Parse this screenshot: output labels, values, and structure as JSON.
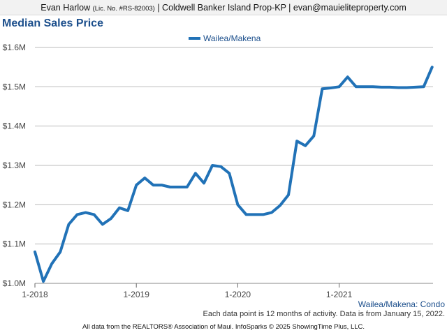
{
  "header": {
    "agent": "Evan Harlow",
    "license": "(Lic. No. #RS-82003)",
    "company": "| Coldwell Banker Island Prop-KP |",
    "email": "evan@mauieliteproperty.com"
  },
  "colors": {
    "series": "#2172b7",
    "title": "#1c4f8c",
    "grid": "#bbbbbb"
  },
  "chart_data": {
    "type": "line",
    "title": "Median Sales Price",
    "legend": {
      "placement": "top-center"
    },
    "grid": true,
    "ylim": [
      1000000,
      1600000
    ],
    "y_ticks": [
      {
        "value": 1000000,
        "label": "$1.0M"
      },
      {
        "value": 1100000,
        "label": "$1.1M"
      },
      {
        "value": 1200000,
        "label": "$1.2M"
      },
      {
        "value": 1300000,
        "label": "$1.3M"
      },
      {
        "value": 1400000,
        "label": "$1.4M"
      },
      {
        "value": 1500000,
        "label": "$1.5M"
      },
      {
        "value": 1600000,
        "label": "$1.6M"
      }
    ],
    "x_ticks": [
      "1-2018",
      "1-2019",
      "1-2020",
      "1-2021"
    ],
    "series": [
      {
        "name": "Wailea/Makena",
        "x": [
          "1-2018",
          "2-2018",
          "3-2018",
          "4-2018",
          "5-2018",
          "6-2018",
          "7-2018",
          "8-2018",
          "9-2018",
          "10-2018",
          "11-2018",
          "12-2018",
          "1-2019",
          "2-2019",
          "3-2019",
          "4-2019",
          "5-2019",
          "6-2019",
          "7-2019",
          "8-2019",
          "9-2019",
          "10-2019",
          "11-2019",
          "12-2019",
          "1-2020",
          "2-2020",
          "3-2020",
          "4-2020",
          "5-2020",
          "6-2020",
          "7-2020",
          "8-2020",
          "9-2020",
          "10-2020",
          "11-2020",
          "12-2020",
          "1-2021",
          "2-2021",
          "3-2021",
          "4-2021",
          "5-2021",
          "6-2021",
          "7-2021",
          "8-2021",
          "9-2021",
          "10-2021",
          "11-2021",
          "12-2021"
        ],
        "values": [
          1080000,
          1005000,
          1050000,
          1080000,
          1150000,
          1175000,
          1180000,
          1175000,
          1150000,
          1165000,
          1192000,
          1185000,
          1250000,
          1268000,
          1250000,
          1250000,
          1245000,
          1245000,
          1245000,
          1280000,
          1255000,
          1300000,
          1297000,
          1280000,
          1200000,
          1175000,
          1175000,
          1175000,
          1180000,
          1198000,
          1225000,
          1362000,
          1350000,
          1375000,
          1495000,
          1497000,
          1500000,
          1525000,
          1500000,
          1500000,
          1500000,
          1499000,
          1499000,
          1498000,
          1498000,
          1499000,
          1500000,
          1550000
        ]
      }
    ]
  },
  "captions": {
    "series_tag": "Wailea/Makena: Condo",
    "note": "Each data point is 12 months of activity. Data is from January 15, 2022.",
    "footer": "All data from the REALTORS® Association of Maui. InfoSparks © 2025 ShowingTime Plus, LLC."
  }
}
